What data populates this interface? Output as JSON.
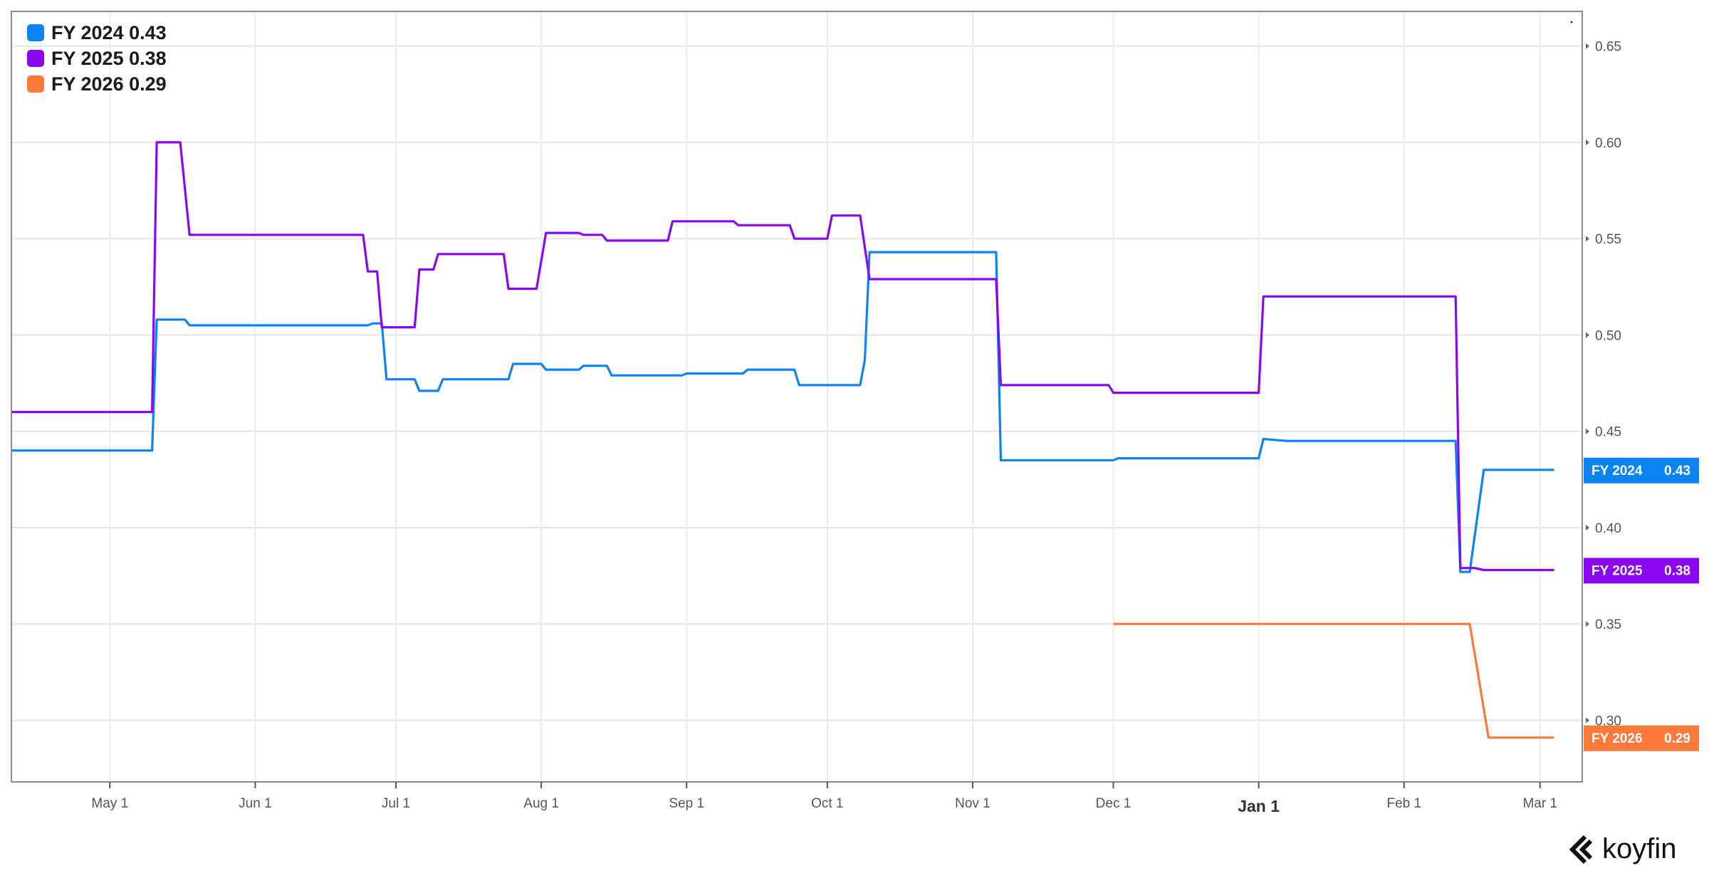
{
  "legend": [
    {
      "label": "FY 2024",
      "value": "0.43",
      "color": "#0a84f5"
    },
    {
      "label": "FY 2025",
      "value": "0.38",
      "color": "#8a05f0"
    },
    {
      "label": "FY 2026",
      "value": "0.29",
      "color": "#ff7a3a"
    }
  ],
  "brand": {
    "name": "koyfin",
    "icon": "koyfin-logo-icon"
  },
  "chart_data": {
    "type": "line",
    "title": "",
    "xlabel": "",
    "ylabel": "",
    "xlim": [
      "2023-04-10",
      "2024-03-10"
    ],
    "ylim": [
      0.268,
      0.668
    ],
    "y_ticks": [
      0.65,
      0.6,
      0.55,
      0.5,
      0.45,
      0.4,
      0.35,
      0.3
    ],
    "x_ticks": [
      {
        "date": "2023-05-01",
        "label": "May 1",
        "bold": false
      },
      {
        "date": "2023-06-01",
        "label": "Jun 1",
        "bold": false
      },
      {
        "date": "2023-07-01",
        "label": "Jul 1",
        "bold": false
      },
      {
        "date": "2023-08-01",
        "label": "Aug 1",
        "bold": false
      },
      {
        "date": "2023-09-01",
        "label": "Sep 1",
        "bold": false
      },
      {
        "date": "2023-10-01",
        "label": "Oct 1",
        "bold": false
      },
      {
        "date": "2023-11-01",
        "label": "Nov 1",
        "bold": false
      },
      {
        "date": "2023-12-01",
        "label": "Dec 1",
        "bold": false
      },
      {
        "date": "2024-01-01",
        "label": "Jan 1",
        "bold": true
      },
      {
        "date": "2024-02-01",
        "label": "Feb 1",
        "bold": false
      },
      {
        "date": "2024-03-01",
        "label": "Mar 1",
        "bold": false
      }
    ],
    "grid": true,
    "legend_position": "top-left",
    "series": [
      {
        "name": "FY 2024",
        "color": "#0a84f5",
        "last_value": "0.43",
        "points": [
          [
            "2023-04-10",
            0.44
          ],
          [
            "2023-05-10",
            0.44
          ],
          [
            "2023-05-11",
            0.508
          ],
          [
            "2023-05-17",
            0.508
          ],
          [
            "2023-05-18",
            0.505
          ],
          [
            "2023-06-25",
            0.505
          ],
          [
            "2023-06-26",
            0.506
          ],
          [
            "2023-06-28",
            0.506
          ],
          [
            "2023-06-29",
            0.477
          ],
          [
            "2023-07-05",
            0.477
          ],
          [
            "2023-07-06",
            0.471
          ],
          [
            "2023-07-10",
            0.471
          ],
          [
            "2023-07-11",
            0.477
          ],
          [
            "2023-07-25",
            0.477
          ],
          [
            "2023-07-26",
            0.485
          ],
          [
            "2023-08-01",
            0.485
          ],
          [
            "2023-08-02",
            0.482
          ],
          [
            "2023-08-09",
            0.482
          ],
          [
            "2023-08-10",
            0.484
          ],
          [
            "2023-08-15",
            0.484
          ],
          [
            "2023-08-16",
            0.479
          ],
          [
            "2023-08-31",
            0.479
          ],
          [
            "2023-09-01",
            0.48
          ],
          [
            "2023-09-13",
            0.48
          ],
          [
            "2023-09-14",
            0.482
          ],
          [
            "2023-09-24",
            0.482
          ],
          [
            "2023-09-25",
            0.474
          ],
          [
            "2023-10-08",
            0.474
          ],
          [
            "2023-10-09",
            0.487
          ],
          [
            "2023-10-10",
            0.543
          ],
          [
            "2023-11-06",
            0.543
          ],
          [
            "2023-11-07",
            0.435
          ],
          [
            "2023-12-01",
            0.435
          ],
          [
            "2023-12-02",
            0.436
          ],
          [
            "2024-01-01",
            0.436
          ],
          [
            "2024-01-02",
            0.446
          ],
          [
            "2024-01-07",
            0.445
          ],
          [
            "2024-02-12",
            0.445
          ],
          [
            "2024-02-13",
            0.377
          ],
          [
            "2024-02-15",
            0.377
          ],
          [
            "2024-02-18",
            0.43
          ],
          [
            "2024-03-04",
            0.43
          ]
        ]
      },
      {
        "name": "FY 2025",
        "color": "#8a05f0",
        "last_value": "0.38",
        "points": [
          [
            "2023-04-10",
            0.46
          ],
          [
            "2023-05-10",
            0.46
          ],
          [
            "2023-05-11",
            0.6
          ],
          [
            "2023-05-16",
            0.6
          ],
          [
            "2023-05-18",
            0.552
          ],
          [
            "2023-06-24",
            0.552
          ],
          [
            "2023-06-25",
            0.533
          ],
          [
            "2023-06-27",
            0.533
          ],
          [
            "2023-06-28",
            0.504
          ],
          [
            "2023-07-05",
            0.504
          ],
          [
            "2023-07-06",
            0.534
          ],
          [
            "2023-07-09",
            0.534
          ],
          [
            "2023-07-10",
            0.542
          ],
          [
            "2023-07-24",
            0.542
          ],
          [
            "2023-07-25",
            0.524
          ],
          [
            "2023-07-31",
            0.524
          ],
          [
            "2023-08-02",
            0.553
          ],
          [
            "2023-08-09",
            0.553
          ],
          [
            "2023-08-10",
            0.552
          ],
          [
            "2023-08-14",
            0.552
          ],
          [
            "2023-08-15",
            0.549
          ],
          [
            "2023-08-28",
            0.549
          ],
          [
            "2023-08-29",
            0.559
          ],
          [
            "2023-09-11",
            0.559
          ],
          [
            "2023-09-12",
            0.557
          ],
          [
            "2023-09-23",
            0.557
          ],
          [
            "2023-09-24",
            0.55
          ],
          [
            "2023-10-01",
            0.55
          ],
          [
            "2023-10-02",
            0.562
          ],
          [
            "2023-10-08",
            0.562
          ],
          [
            "2023-10-10",
            0.529
          ],
          [
            "2023-11-06",
            0.529
          ],
          [
            "2023-11-07",
            0.474
          ],
          [
            "2023-11-30",
            0.474
          ],
          [
            "2023-12-01",
            0.47
          ],
          [
            "2024-01-01",
            0.47
          ],
          [
            "2024-01-02",
            0.52
          ],
          [
            "2024-02-12",
            0.52
          ],
          [
            "2024-02-13",
            0.379
          ],
          [
            "2024-02-16",
            0.379
          ],
          [
            "2024-02-18",
            0.378
          ],
          [
            "2024-03-04",
            0.378
          ]
        ]
      },
      {
        "name": "FY 2026",
        "color": "#ff7a3a",
        "last_value": "0.29",
        "points": [
          [
            "2023-12-01",
            0.35
          ],
          [
            "2024-02-15",
            0.35
          ],
          [
            "2024-02-19",
            0.291
          ],
          [
            "2024-03-04",
            0.291
          ]
        ]
      }
    ]
  }
}
